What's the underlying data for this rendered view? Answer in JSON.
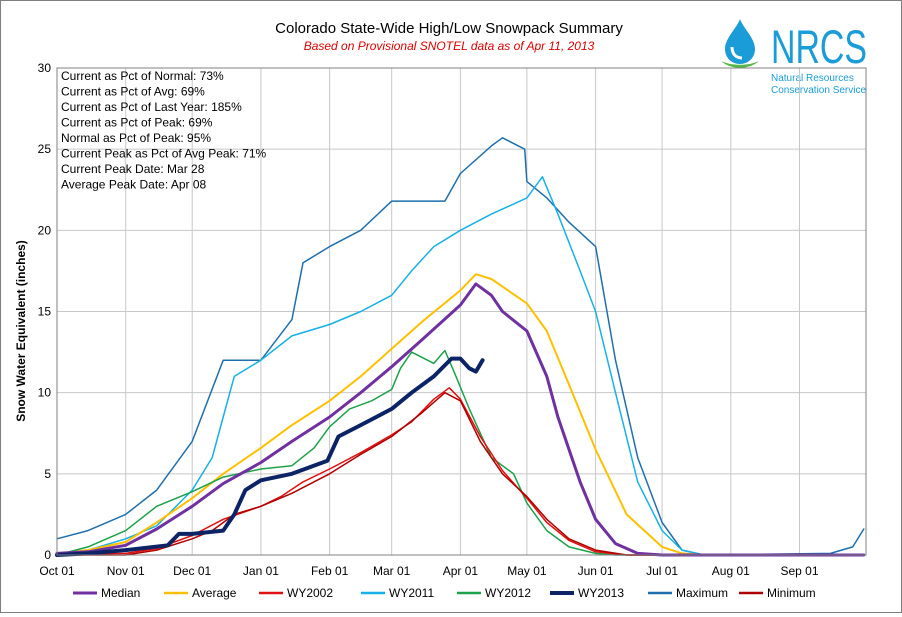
{
  "chart_data": {
    "type": "line",
    "title": "Colorado State-Wide High/Low Snowpack Summary",
    "subtitle": "Based on Provisional SNOTEL data as of Apr 11, 2013",
    "xlabel": "",
    "ylabel": "Snow Water Equivalent (inches)",
    "ylim": [
      0,
      30
    ],
    "yticks": [
      "0",
      "5",
      "10",
      "15",
      "20",
      "25",
      "30"
    ],
    "xlim": [
      "Oct 01",
      "Sep 30"
    ],
    "xticks": [
      "Oct 01",
      "Nov 01",
      "Dec 01",
      "Jan 01",
      "Feb 01",
      "Mar 01",
      "Apr 01",
      "May 01",
      "Jun 01",
      "Jul 01",
      "Aug 01",
      "Sep 01"
    ],
    "grid": true,
    "legend_position": "bottom",
    "stats": [
      "Current as Pct of Normal: 73%",
      "Current as Pct of Avg: 69%",
      "Current as Pct of Last Year: 185%",
      "Current as Pct of Peak: 69%",
      "Normal as Pct of Peak: 95%",
      "Current Peak as Pct of Avg Peak: 71%",
      "Current Peak Date: Mar 28",
      "Average Peak Date: Apr 08"
    ],
    "logo": {
      "name": "NRCS",
      "line1": "Natural Resources",
      "line2": "Conservation Service",
      "color": "#1a9cd8"
    },
    "series": [
      {
        "name": "Median",
        "color": "#7030a0",
        "width": 3,
        "points": [
          [
            "Oct 01",
            0.1
          ],
          [
            "Oct 15",
            0.2
          ],
          [
            "Nov 01",
            0.6
          ],
          [
            "Nov 15",
            1.6
          ],
          [
            "Dec 01",
            3.0
          ],
          [
            "Dec 15",
            4.4
          ],
          [
            "Jan 01",
            5.7
          ],
          [
            "Jan 15",
            7.0
          ],
          [
            "Feb 01",
            8.5
          ],
          [
            "Feb 15",
            10.0
          ],
          [
            "Mar 01",
            11.6
          ],
          [
            "Mar 15",
            13.3
          ],
          [
            "Apr 01",
            15.4
          ],
          [
            "Apr 08",
            16.7
          ],
          [
            "Apr 15",
            16.0
          ],
          [
            "Apr 20",
            15.0
          ],
          [
            "May 01",
            13.8
          ],
          [
            "May 10",
            11.0
          ],
          [
            "May 15",
            8.5
          ],
          [
            "May 25",
            4.5
          ],
          [
            "Jun 01",
            2.2
          ],
          [
            "Jun 10",
            0.7
          ],
          [
            "Jun 20",
            0.1
          ],
          [
            "Jul 01",
            0.0
          ],
          [
            "Sep 30",
            0.0
          ]
        ]
      },
      {
        "name": "Average",
        "color": "#ffc000",
        "width": 2,
        "points": [
          [
            "Oct 01",
            0.1
          ],
          [
            "Oct 15",
            0.3
          ],
          [
            "Nov 01",
            0.8
          ],
          [
            "Nov 15",
            2.0
          ],
          [
            "Dec 01",
            3.5
          ],
          [
            "Dec 15",
            5.0
          ],
          [
            "Jan 01",
            6.6
          ],
          [
            "Jan 15",
            8.0
          ],
          [
            "Feb 01",
            9.5
          ],
          [
            "Feb 15",
            11.0
          ],
          [
            "Mar 01",
            12.7
          ],
          [
            "Mar 15",
            14.4
          ],
          [
            "Apr 01",
            16.3
          ],
          [
            "Apr 08",
            17.3
          ],
          [
            "Apr 15",
            17.0
          ],
          [
            "May 01",
            15.5
          ],
          [
            "May 10",
            13.8
          ],
          [
            "May 20",
            10.5
          ],
          [
            "Jun 01",
            6.5
          ],
          [
            "Jun 15",
            2.5
          ],
          [
            "Jul 01",
            0.5
          ],
          [
            "Jul 10",
            0.1
          ],
          [
            "Jul 20",
            0.0
          ],
          [
            "Sep 30",
            0.0
          ]
        ]
      },
      {
        "name": "WY2002",
        "color": "#e01010",
        "width": 1.5,
        "points": [
          [
            "Oct 01",
            0.0
          ],
          [
            "Nov 01",
            0.1
          ],
          [
            "Nov 15",
            0.4
          ],
          [
            "Dec 01",
            1.2
          ],
          [
            "Dec 15",
            2.2
          ],
          [
            "Jan 01",
            3.0
          ],
          [
            "Jan 10",
            3.6
          ],
          [
            "Jan 20",
            4.5
          ],
          [
            "Feb 01",
            5.3
          ],
          [
            "Feb 15",
            6.3
          ],
          [
            "Mar 01",
            7.4
          ],
          [
            "Mar 10",
            8.2
          ],
          [
            "Mar 20",
            9.6
          ],
          [
            "Mar 27",
            10.3
          ],
          [
            "Apr 01",
            9.6
          ],
          [
            "Apr 10",
            7.3
          ],
          [
            "Apr 20",
            5.2
          ],
          [
            "May 01",
            3.5
          ],
          [
            "May 10",
            2.0
          ],
          [
            "May 20",
            0.9
          ],
          [
            "Jun 01",
            0.2
          ],
          [
            "Jun 15",
            0.0
          ],
          [
            "Sep 30",
            0.0
          ]
        ]
      },
      {
        "name": "WY2011",
        "color": "#17b0e8",
        "width": 1.5,
        "points": [
          [
            "Oct 01",
            0.0
          ],
          [
            "Oct 15",
            0.3
          ],
          [
            "Nov 01",
            1.0
          ],
          [
            "Nov 15",
            1.8
          ],
          [
            "Dec 01",
            4.0
          ],
          [
            "Dec 10",
            6.0
          ],
          [
            "Dec 15",
            8.5
          ],
          [
            "Dec 20",
            11.0
          ],
          [
            "Jan 01",
            12.0
          ],
          [
            "Jan 15",
            13.5
          ],
          [
            "Feb 01",
            14.2
          ],
          [
            "Feb 15",
            15.0
          ],
          [
            "Mar 01",
            16.0
          ],
          [
            "Mar 10",
            17.5
          ],
          [
            "Mar 20",
            19.0
          ],
          [
            "Apr 01",
            20.0
          ],
          [
            "Apr 15",
            21.0
          ],
          [
            "May 01",
            22.0
          ],
          [
            "May 08",
            23.3
          ],
          [
            "May 15",
            21.0
          ],
          [
            "May 25",
            17.5
          ],
          [
            "Jun 01",
            15.0
          ],
          [
            "Jun 10",
            10.0
          ],
          [
            "Jun 20",
            4.5
          ],
          [
            "Jul 01",
            1.5
          ],
          [
            "Jul 10",
            0.3
          ],
          [
            "Jul 20",
            0.0
          ],
          [
            "Sep 30",
            0.0
          ]
        ]
      },
      {
        "name": "WY2012",
        "color": "#1ba24a",
        "width": 1.5,
        "points": [
          [
            "Oct 01",
            0.0
          ],
          [
            "Oct 15",
            0.5
          ],
          [
            "Nov 01",
            1.5
          ],
          [
            "Nov 15",
            3.0
          ],
          [
            "Dec 01",
            3.9
          ],
          [
            "Dec 15",
            4.8
          ],
          [
            "Jan 01",
            5.3
          ],
          [
            "Jan 15",
            5.5
          ],
          [
            "Jan 25",
            6.6
          ],
          [
            "Feb 01",
            7.9
          ],
          [
            "Feb 10",
            9.0
          ],
          [
            "Feb 20",
            9.5
          ],
          [
            "Mar 01",
            10.2
          ],
          [
            "Mar 05",
            11.5
          ],
          [
            "Mar 10",
            12.5
          ],
          [
            "Mar 20",
            11.8
          ],
          [
            "Mar 25",
            12.6
          ],
          [
            "Mar 30",
            11.0
          ],
          [
            "Apr 05",
            9.0
          ],
          [
            "Apr 15",
            6.0
          ],
          [
            "Apr 25",
            5.0
          ],
          [
            "May 01",
            3.2
          ],
          [
            "May 10",
            1.5
          ],
          [
            "May 20",
            0.5
          ],
          [
            "Jun 01",
            0.1
          ],
          [
            "Jun 10",
            0.0
          ],
          [
            "Sep 30",
            0.0
          ]
        ]
      },
      {
        "name": "WY2013",
        "color": "#0c2366",
        "width": 4,
        "points": [
          [
            "Oct 01",
            0.0
          ],
          [
            "Oct 15",
            0.1
          ],
          [
            "Nov 01",
            0.3
          ],
          [
            "Nov 20",
            0.6
          ],
          [
            "Nov 25",
            1.3
          ],
          [
            "Dec 01",
            1.3
          ],
          [
            "Dec 15",
            1.5
          ],
          [
            "Dec 20",
            2.5
          ],
          [
            "Dec 25",
            4.0
          ],
          [
            "Jan 01",
            4.6
          ],
          [
            "Jan 15",
            5.0
          ],
          [
            "Jan 31",
            5.8
          ],
          [
            "Feb 05",
            7.3
          ],
          [
            "Feb 15",
            8.0
          ],
          [
            "Mar 01",
            9.0
          ],
          [
            "Mar 10",
            10.0
          ],
          [
            "Mar 20",
            11.0
          ],
          [
            "Mar 28",
            12.1
          ],
          [
            "Apr 01",
            12.1
          ],
          [
            "Apr 05",
            11.5
          ],
          [
            "Apr 08",
            11.3
          ],
          [
            "Apr 11",
            12.0
          ]
        ]
      },
      {
        "name": "Maximum",
        "color": "#1f6fae",
        "width": 1.5,
        "points": [
          [
            "Oct 01",
            1.0
          ],
          [
            "Oct 15",
            1.5
          ],
          [
            "Nov 01",
            2.5
          ],
          [
            "Nov 15",
            4.0
          ],
          [
            "Dec 01",
            7.0
          ],
          [
            "Dec 15",
            12.0
          ],
          [
            "Jan 01",
            12.0
          ],
          [
            "Jan 15",
            14.5
          ],
          [
            "Jan 20",
            18.0
          ],
          [
            "Feb 01",
            19.0
          ],
          [
            "Feb 15",
            20.0
          ],
          [
            "Mar 01",
            21.8
          ],
          [
            "Mar 15",
            21.8
          ],
          [
            "Mar 25",
            21.8
          ],
          [
            "Apr 01",
            23.5
          ],
          [
            "Apr 15",
            25.2
          ],
          [
            "Apr 20",
            25.7
          ],
          [
            "Apr 30",
            25.0
          ],
          [
            "May 01",
            23.0
          ],
          [
            "May 10",
            22.0
          ],
          [
            "May 20",
            20.5
          ],
          [
            "Jun 01",
            19.0
          ],
          [
            "Jun 10",
            12.0
          ],
          [
            "Jun 20",
            6.0
          ],
          [
            "Jul 01",
            2.0
          ],
          [
            "Jul 10",
            0.3
          ],
          [
            "Jul 20",
            0.0
          ],
          [
            "Sep 15",
            0.1
          ],
          [
            "Sep 25",
            0.5
          ],
          [
            "Sep 30",
            1.6
          ]
        ]
      },
      {
        "name": "Minimum",
        "color": "#b00000",
        "width": 1.5,
        "points": [
          [
            "Oct 01",
            0.0
          ],
          [
            "Nov 01",
            0.0
          ],
          [
            "Nov 15",
            0.3
          ],
          [
            "Dec 01",
            1.0
          ],
          [
            "Dec 10",
            1.5
          ],
          [
            "Dec 20",
            2.5
          ],
          [
            "Jan 01",
            3.0
          ],
          [
            "Jan 15",
            3.8
          ],
          [
            "Feb 01",
            5.0
          ],
          [
            "Feb 15",
            6.2
          ],
          [
            "Mar 01",
            7.3
          ],
          [
            "Mar 15",
            8.8
          ],
          [
            "Mar 25",
            10.0
          ],
          [
            "Apr 01",
            9.5
          ],
          [
            "Apr 10",
            7.0
          ],
          [
            "Apr 20",
            5.0
          ],
          [
            "May 01",
            3.6
          ],
          [
            "May 10",
            2.2
          ],
          [
            "May 20",
            1.0
          ],
          [
            "Jun 01",
            0.3
          ],
          [
            "Jun 15",
            0.0
          ],
          [
            "Sep 30",
            0.0
          ]
        ]
      }
    ]
  }
}
